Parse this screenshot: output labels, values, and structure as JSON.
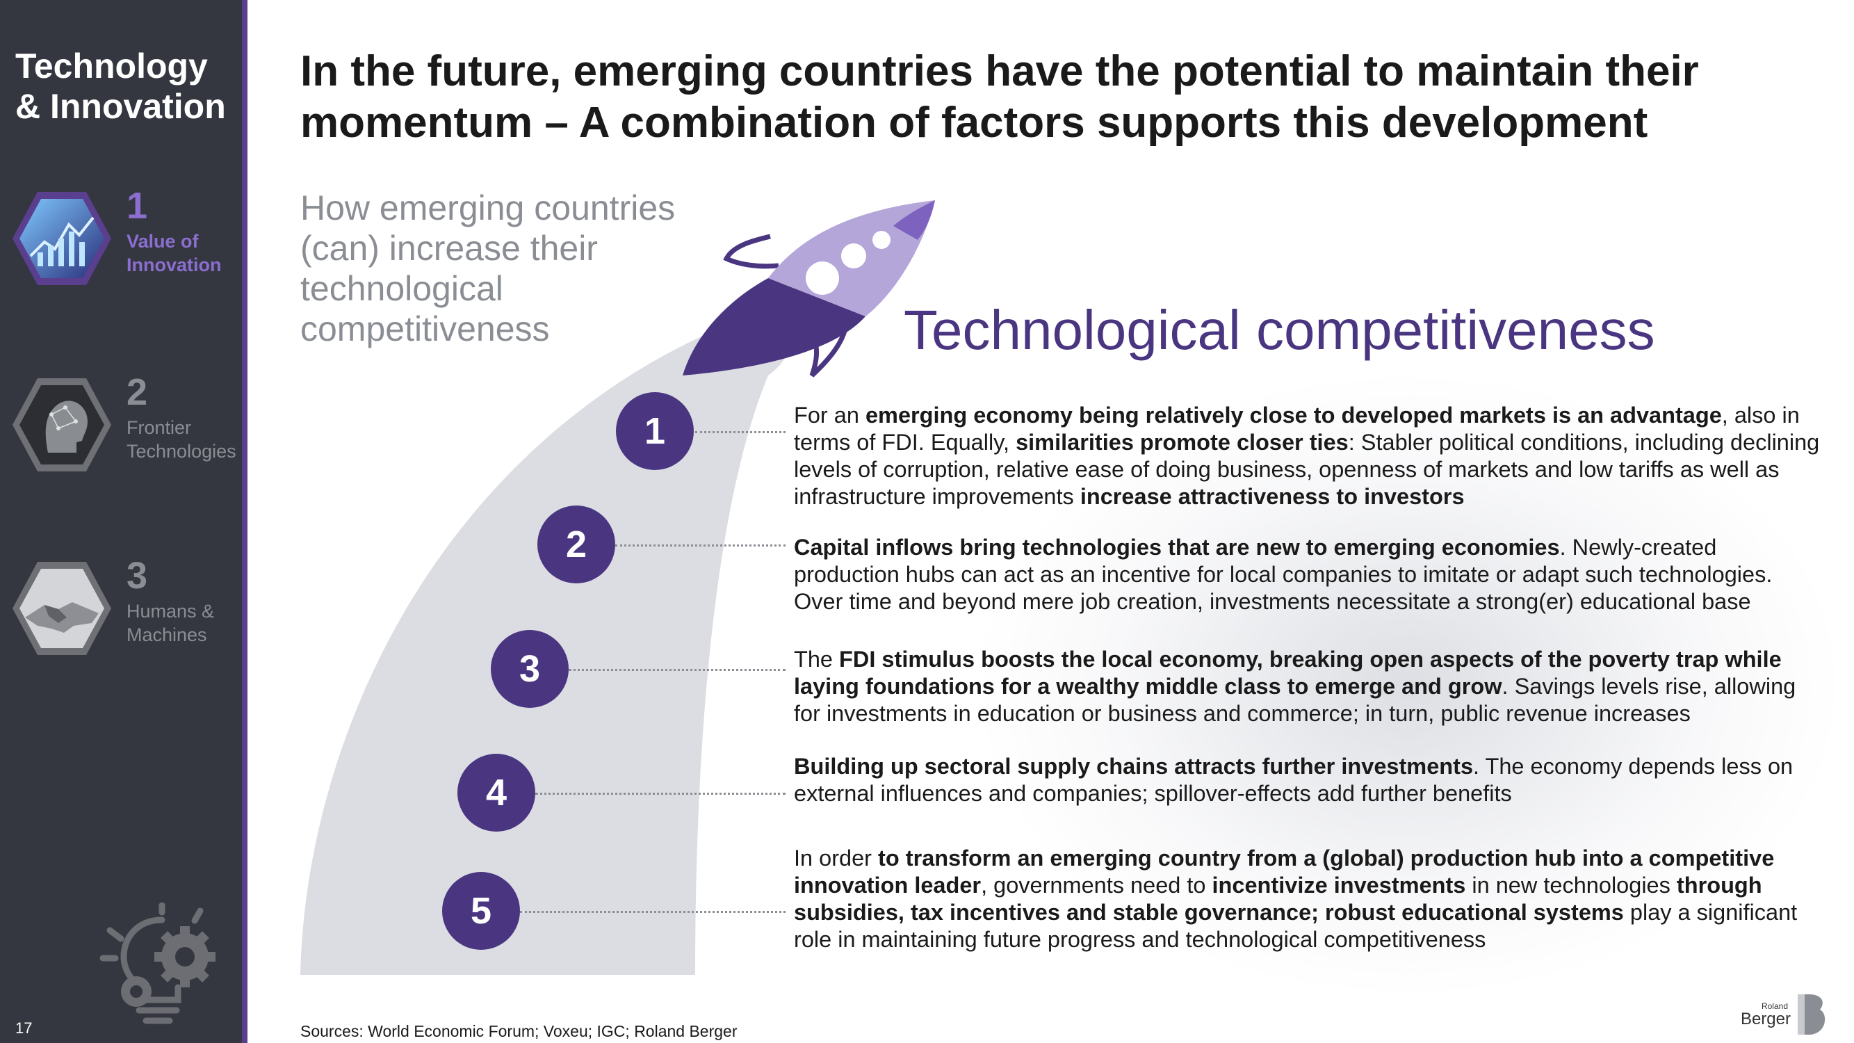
{
  "sidebar": {
    "section_title": "Technology & Innovation",
    "items": [
      {
        "number": "1",
        "label": "Value of Innovation",
        "active": true,
        "icon": "data-tech-hex-icon"
      },
      {
        "number": "2",
        "label": "Frontier Technologies",
        "active": false,
        "icon": "ai-head-hex-icon"
      },
      {
        "number": "3",
        "label": "Humans & Machines",
        "active": false,
        "icon": "handshake-hex-icon"
      }
    ],
    "page_number": "17",
    "footer_icon": "bulb-gear-icon"
  },
  "headline": "In the future, emerging countries have the potential to maintain their momentum – A combination of factors supports this development",
  "subhead": "How emerging countries (can) increase their technological competitiveness",
  "diagram": {
    "title": "Technological competitiveness",
    "rocket_icon": "rocket-icon",
    "steps": [
      {
        "number": "1",
        "segments": [
          {
            "t": "For an ",
            "b": false
          },
          {
            "t": "emerging economy being relatively close to developed markets is an advantage",
            "b": true
          },
          {
            "t": ", also in terms of FDI. Equally, ",
            "b": false
          },
          {
            "t": "similarities promote closer ties",
            "b": true
          },
          {
            "t": ": Stabler political conditions, including declining levels of corruption, relative ease of doing business, openness of markets and low tariffs as well as infrastructure improvements ",
            "b": false
          },
          {
            "t": "increase attractiveness to investors",
            "b": true
          }
        ]
      },
      {
        "number": "2",
        "segments": [
          {
            "t": "Capital inflows bring technologies that are new to emerging economies",
            "b": true
          },
          {
            "t": ". Newly-created production hubs can act as an incentive for local companies to imitate or adapt such technologies. Over time and beyond mere job creation, investments necessitate a strong(er) educational base",
            "b": false
          }
        ]
      },
      {
        "number": "3",
        "segments": [
          {
            "t": "The ",
            "b": false
          },
          {
            "t": "FDI stimulus boosts the local economy, breaking open aspects of the poverty trap while laying foundations for a wealthy middle class to emerge and grow",
            "b": true
          },
          {
            "t": ". Savings levels rise, allowing for investments in education or business and commerce; in turn, public revenue increases",
            "b": false
          }
        ]
      },
      {
        "number": "4",
        "segments": [
          {
            "t": "Building up sectoral supply chains attracts further investments",
            "b": true
          },
          {
            "t": ". The economy depends less on external influences and companies; spillover-effects add further benefits",
            "b": false
          }
        ]
      },
      {
        "number": "5",
        "segments": [
          {
            "t": "In order ",
            "b": false
          },
          {
            "t": "to transform an emerging country from a (global) production hub into a competitive innovation leader",
            "b": true
          },
          {
            "t": ", governments need to ",
            "b": false
          },
          {
            "t": "incentivize investments",
            "b": true
          },
          {
            "t": " in new technologies ",
            "b": false
          },
          {
            "t": "through subsidies, tax incentives and stable governance; robust educational systems",
            "b": true
          },
          {
            "t": " play a significant role in maintaining future progress and technological competitiveness",
            "b": false
          }
        ]
      }
    ]
  },
  "sources": "Sources: World Economic Forum; Voxeu; IGC; Roland Berger",
  "logo": {
    "line1": "Roland",
    "line2": "Berger"
  },
  "colors": {
    "sidebar": "#34373f",
    "accent": "#4a3580",
    "text_grey": "#8a8d93",
    "arc": "#dcdde2"
  }
}
